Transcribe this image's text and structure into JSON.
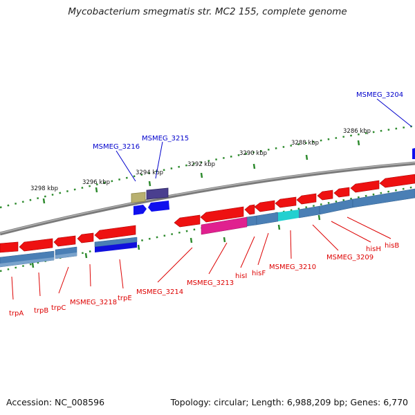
{
  "title": "Mycobacterium smegmatis str. MC2 155, complete genome",
  "footer": {
    "accession": "Accession: NC_008596",
    "summary": "Topology: circular; Length: 6,988,209 bp; Genes: 6,770"
  },
  "colors": {
    "backbone": "#888888",
    "ticks": "#2e8b2e",
    "gene_red": "#ee1111",
    "gene_blue": "#4a7fb5",
    "gene_darkblue": "#1010dd",
    "gene_magenta": "#e0208f",
    "gene_cyan": "#22d0d0",
    "gene_olive": "#b8b070",
    "gene_purple": "#4a3f8f",
    "label_red": "#dd0000",
    "label_blue": "#0000cc"
  },
  "scale": {
    "unit": "kbp",
    "labels": [
      "3298 kbp",
      "3296 kbp",
      "3294 kbp",
      "3292 kbp",
      "3290 kbp",
      "3288 kbp",
      "3286 kbp"
    ]
  },
  "labels_outer": [
    "MSMEG_3216",
    "MSMEG_3215",
    "MSMEG_3204"
  ],
  "labels_inner": [
    "trpA",
    "trpB",
    "trpC",
    "MSMEG_3218",
    "trpE",
    "MSMEG_3214",
    "MSMEG_3213",
    "hisI",
    "hisF",
    "MSMEG_3210",
    "MSMEG_3209",
    "hisH",
    "hisB"
  ]
}
